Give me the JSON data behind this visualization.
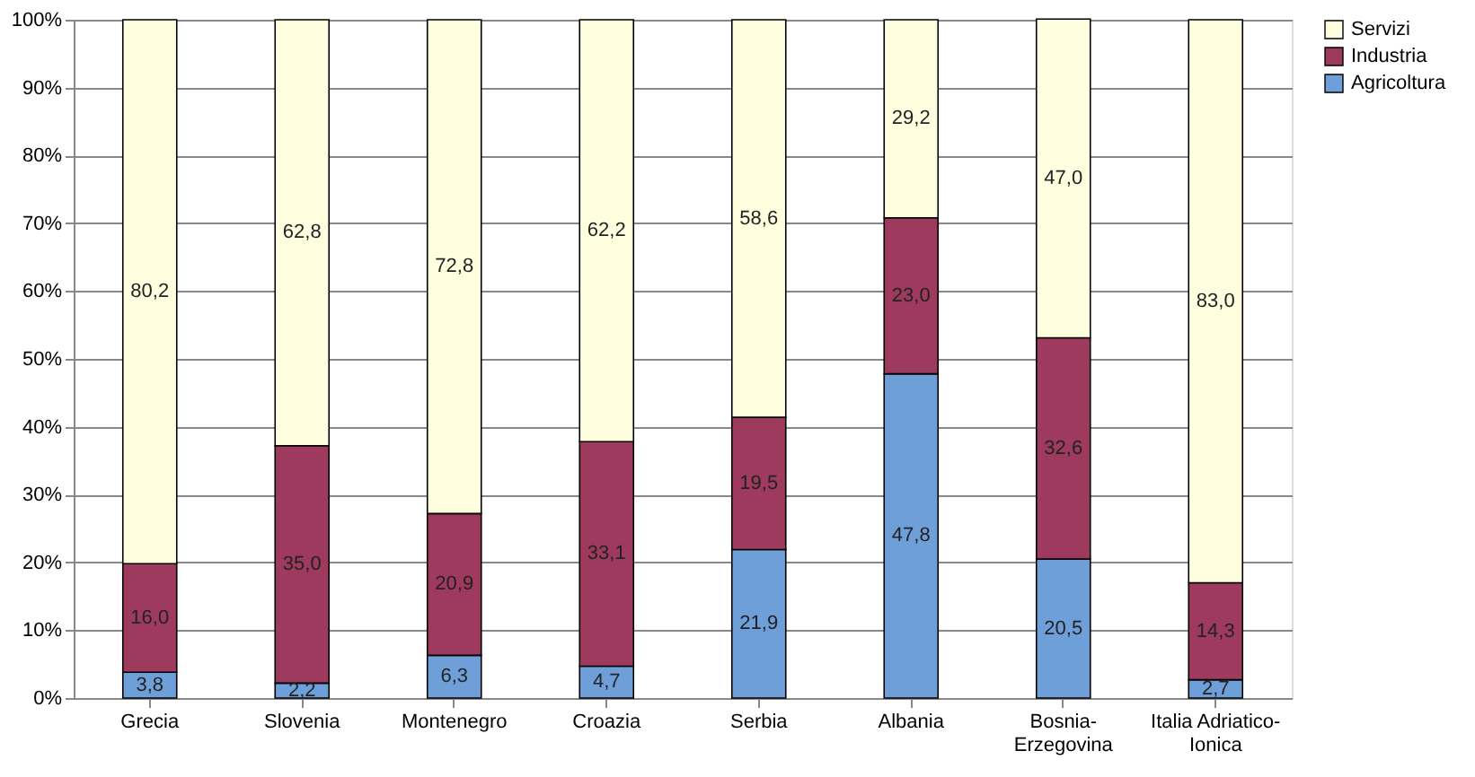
{
  "chart_data": {
    "type": "bar",
    "stacked": true,
    "categories": [
      "Grecia",
      "Slovenia",
      "Montenegro",
      "Croazia",
      "Serbia",
      "Albania",
      "Bosnia-Erzegovina",
      "Italia Adriatico-Ionica"
    ],
    "series": [
      {
        "name": "Agricoltura",
        "color": "#6f9fd8",
        "values": [
          3.8,
          2.2,
          6.3,
          4.7,
          21.9,
          47.8,
          20.5,
          2.7
        ],
        "value_labels": [
          "3,8",
          "2,2",
          "6,3",
          "4,7",
          "21,9",
          "47,8",
          "20,5",
          "2,7"
        ]
      },
      {
        "name": "Industria",
        "color": "#9e3a5e",
        "values": [
          16.0,
          35.0,
          20.9,
          33.1,
          19.5,
          23.0,
          32.6,
          14.3
        ],
        "value_labels": [
          "16,0",
          "35,0",
          "20,9",
          "33,1",
          "19,5",
          "23,0",
          "32,6",
          "14,3"
        ]
      },
      {
        "name": "Servizi",
        "color": "#ffffe0",
        "values": [
          80.2,
          62.8,
          72.8,
          62.2,
          58.6,
          29.2,
          47.0,
          83.0
        ],
        "value_labels": [
          "80,2",
          "62,8",
          "72,8",
          "62,2",
          "58,6",
          "29,2",
          "47,0",
          "83,0"
        ]
      }
    ],
    "ylim": [
      0,
      100
    ],
    "yticks": [
      {
        "value": 0,
        "label": "0%"
      },
      {
        "value": 10,
        "label": "10%"
      },
      {
        "value": 20,
        "label": "20%"
      },
      {
        "value": 30,
        "label": "30%"
      },
      {
        "value": 40,
        "label": "40%"
      },
      {
        "value": 50,
        "label": "50%"
      },
      {
        "value": 60,
        "label": "60%"
      },
      {
        "value": 70,
        "label": "70%"
      },
      {
        "value": 80,
        "label": "80%"
      },
      {
        "value": 90,
        "label": "90%"
      },
      {
        "value": 100,
        "label": "100%"
      }
    ],
    "grid": "y",
    "legend": "right"
  }
}
